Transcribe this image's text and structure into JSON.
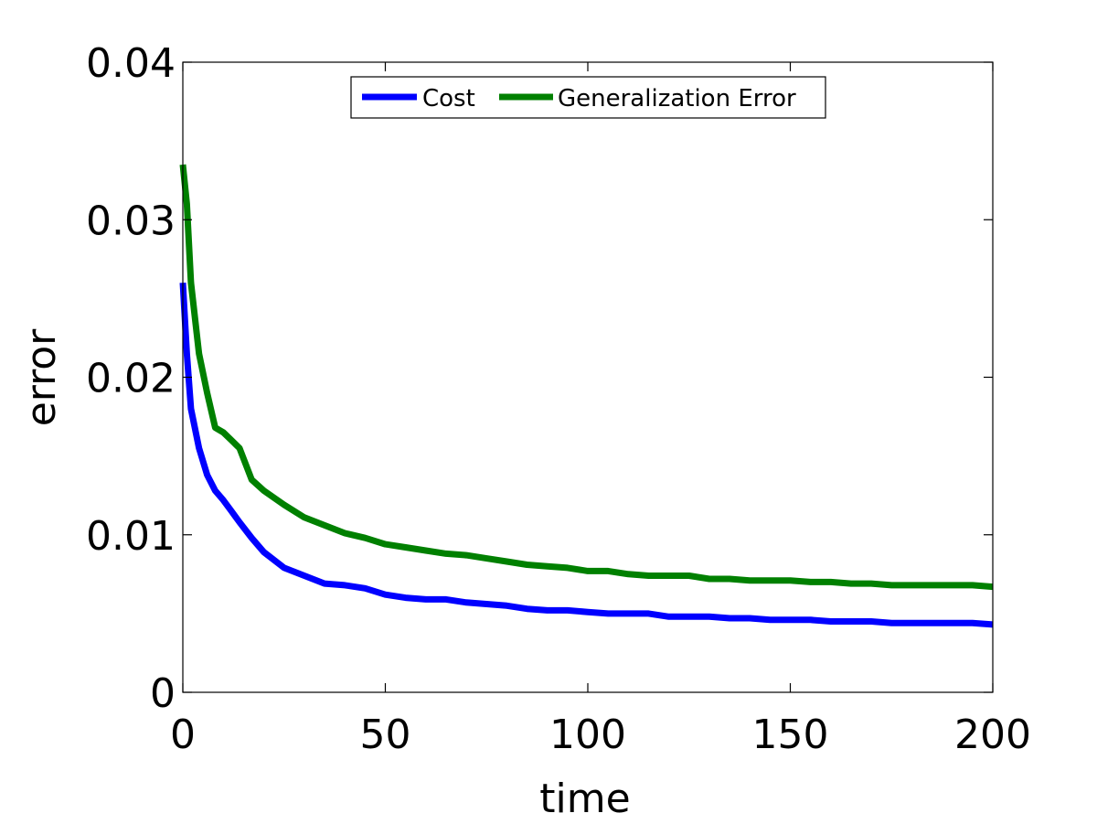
{
  "chart_data": {
    "type": "line",
    "title": "",
    "xlabel": "time",
    "ylabel": "error",
    "xlim": [
      0,
      200
    ],
    "ylim": [
      0,
      0.04
    ],
    "xticks": [
      0,
      50,
      100,
      150,
      200
    ],
    "xtick_labels": [
      "0",
      "50",
      "100",
      "150",
      "200"
    ],
    "yticks": [
      0,
      0.01,
      0.02,
      0.03,
      0.04
    ],
    "ytick_labels": [
      "0",
      "0.01",
      "0.02",
      "0.03",
      "0.04"
    ],
    "grid": false,
    "legend": {
      "position": "top",
      "orientation": "horizontal"
    },
    "x": [
      0,
      1,
      2,
      4,
      6,
      8,
      10,
      12,
      14,
      17,
      20,
      25,
      30,
      35,
      40,
      45,
      50,
      55,
      60,
      65,
      70,
      75,
      80,
      85,
      90,
      95,
      100,
      105,
      110,
      115,
      120,
      125,
      130,
      135,
      140,
      145,
      150,
      155,
      160,
      165,
      170,
      175,
      180,
      185,
      190,
      195,
      200
    ],
    "series": [
      {
        "name": "Cost",
        "color": "#0000ff",
        "values": [
          0.026,
          0.0215,
          0.018,
          0.0155,
          0.0138,
          0.0128,
          0.0122,
          0.0115,
          0.0108,
          0.0098,
          0.0089,
          0.0079,
          0.0074,
          0.0069,
          0.0068,
          0.0066,
          0.0062,
          0.006,
          0.0059,
          0.0059,
          0.0057,
          0.0056,
          0.0055,
          0.0053,
          0.0052,
          0.0052,
          0.0051,
          0.005,
          0.005,
          0.005,
          0.0048,
          0.0048,
          0.0048,
          0.0047,
          0.0047,
          0.0046,
          0.0046,
          0.0046,
          0.0045,
          0.0045,
          0.0045,
          0.0044,
          0.0044,
          0.0044,
          0.0044,
          0.0044,
          0.0043
        ]
      },
      {
        "name": "Generalization Error",
        "color": "#008000",
        "values": [
          0.0335,
          0.031,
          0.026,
          0.0215,
          0.019,
          0.0168,
          0.0165,
          0.016,
          0.0155,
          0.0135,
          0.0128,
          0.0119,
          0.0111,
          0.0106,
          0.0101,
          0.0098,
          0.0094,
          0.0092,
          0.009,
          0.0088,
          0.0087,
          0.0085,
          0.0083,
          0.0081,
          0.008,
          0.0079,
          0.0077,
          0.0077,
          0.0075,
          0.0074,
          0.0074,
          0.0074,
          0.0072,
          0.0072,
          0.0071,
          0.0071,
          0.0071,
          0.007,
          0.007,
          0.0069,
          0.0069,
          0.0068,
          0.0068,
          0.0068,
          0.0068,
          0.0068,
          0.0067
        ]
      }
    ]
  }
}
